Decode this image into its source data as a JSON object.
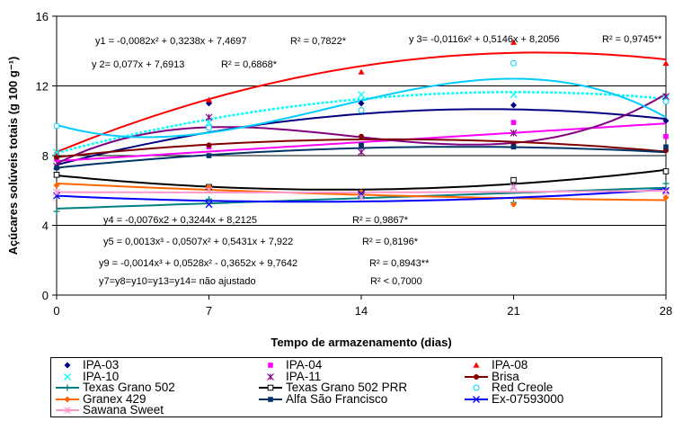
{
  "chart_data": {
    "type": "scatter",
    "xlabel": "Tempo de armazenamento (dias)",
    "ylabel": "Açúcares solúveis totais (g 100 g⁻¹)",
    "xticks": [
      0,
      7,
      14,
      21,
      28
    ],
    "yticks": [
      0,
      4,
      8,
      12,
      16
    ],
    "xlim": [
      0,
      28
    ],
    "ylim": [
      0,
      16
    ],
    "grid": "horizontal",
    "legend_position": "bottom",
    "series": [
      {
        "name": "IPA-03",
        "color": "#000080",
        "marker": "diamond",
        "x": [
          0,
          7,
          14,
          21,
          28
        ],
        "y": [
          7.9,
          11.0,
          11.0,
          10.9,
          10.0
        ],
        "curve": {
          "kind": "poly",
          "coef": [
            7.4697,
            0.3238,
            -0.0082
          ]
        }
      },
      {
        "name": "IPA-04",
        "color": "#ff00ff",
        "marker": "square",
        "x": [
          0,
          7,
          14,
          21,
          28
        ],
        "y": [
          7.8,
          8.5,
          8.6,
          9.9,
          9.1
        ],
        "curve": {
          "kind": "poly",
          "coef": [
            7.6913,
            0.077
          ]
        }
      },
      {
        "name": "IPA-08",
        "color": "#ff0000",
        "marker": "triangle",
        "x": [
          0,
          7,
          14,
          21,
          28
        ],
        "y": [
          8.2,
          11.2,
          12.8,
          14.5,
          13.3
        ],
        "curve": {
          "kind": "poly",
          "coef": [
            8.2056,
            0.5146,
            -0.0116
          ]
        }
      },
      {
        "name": "IPA-10",
        "color": "#00ffff",
        "marker": "x",
        "x": [
          0,
          7,
          14,
          21,
          28
        ],
        "y": [
          8.2,
          9.9,
          11.5,
          11.5,
          11.3
        ],
        "curve": {
          "kind": "dashed-mean"
        }
      },
      {
        "name": "IPA-11",
        "color": "#800080",
        "marker": "star",
        "x": [
          0,
          7,
          14,
          21,
          28
        ],
        "y": [
          7.4,
          10.2,
          8.2,
          9.3,
          11.4
        ],
        "curve": {
          "kind": "fit-points"
        }
      },
      {
        "name": "Brisa",
        "color": "#800000",
        "marker": "circle",
        "x": [
          0,
          7,
          14,
          21,
          28
        ],
        "y": [
          7.9,
          8.6,
          9.1,
          8.6,
          8.3
        ],
        "curve": {
          "kind": "poly-line"
        }
      },
      {
        "name": "Texas Grano 502",
        "color": "#008080",
        "marker": "plus",
        "x": [
          0,
          7,
          14,
          21,
          28
        ],
        "y": [
          4.8,
          5.5,
          5.8,
          5.3,
          6.4
        ],
        "curve": {
          "kind": "poly-line"
        }
      },
      {
        "name": "Texas Grano 502 PRR",
        "color": "#000000",
        "marker": "open-square",
        "x": [
          0,
          7,
          14,
          21,
          28
        ],
        "y": [
          6.9,
          6.2,
          5.9,
          6.6,
          7.1
        ],
        "curve": {
          "kind": "poly-line"
        }
      },
      {
        "name": "Red Creole",
        "color": "#00ccff",
        "marker": "open-circle",
        "x": [
          0,
          7,
          14,
          21,
          28
        ],
        "y": [
          9.7,
          9.6,
          10.6,
          13.3,
          11.1
        ],
        "curve": {
          "kind": "poly",
          "coef": [
            9.7642,
            -0.3652,
            0.0528,
            -0.0014
          ]
        }
      },
      {
        "name": "Granex 429",
        "color": "#ff6600",
        "marker": "diamond",
        "x": [
          0,
          7,
          14,
          21,
          28
        ],
        "y": [
          6.3,
          6.2,
          5.9,
          5.2,
          5.6
        ],
        "curve": {
          "kind": "poly-line"
        }
      },
      {
        "name": "Alfa São Francisco",
        "color": "#003366",
        "marker": "square",
        "x": [
          0,
          7,
          14,
          21,
          28
        ],
        "y": [
          7.3,
          8.0,
          8.6,
          8.5,
          8.5
        ],
        "curve": {
          "kind": "poly",
          "coef": [
            7.3,
            0.13,
            -0.0035
          ]
        }
      },
      {
        "name": "Ex-07593000",
        "color": "#0000ff",
        "marker": "x",
        "x": [
          0,
          7,
          14,
          21,
          28
        ],
        "y": [
          5.7,
          5.2,
          5.8,
          6.2,
          6.0
        ],
        "curve": {
          "kind": "poly",
          "coef": [
            5.7,
            -0.06,
            0.0026
          ]
        }
      },
      {
        "name": "Sawana Sweet",
        "color": "#ff99cc",
        "marker": "star",
        "x": [
          0,
          7,
          14,
          21,
          28
        ],
        "y": [
          5.9,
          6.0,
          5.6,
          6.2,
          5.9
        ],
        "curve": {
          "kind": "poly-line"
        }
      }
    ],
    "annotations": [
      {
        "id": "eq1",
        "equation": "y1 = -0,0082x² + 0,3238x + 7,4697",
        "r2": "R² = 0,7822*"
      },
      {
        "id": "eq2",
        "equation": "y 2= 0,077x + 7,6913",
        "r2": "R² = 0,6868*"
      },
      {
        "id": "eq3",
        "equation": "y 3= -0,0116x² + 0,5146x + 8,2056",
        "r2": "R² = 0,9745**"
      },
      {
        "id": "eq4",
        "equation": "y4 = -0,0076x2 + 0,3244x + 8,2125",
        "r2": "R² = 0,9867*"
      },
      {
        "id": "eq5",
        "equation": "y5 = 0,0013x³ - 0,0507x² + 0,5431x + 7,922",
        "r2": "R² = 0,8196*"
      },
      {
        "id": "eq9",
        "equation": "y9 = -0,0014x³ + 0,0528x² - 0,3652x + 9,7642",
        "r2": "R² = 0,8943**"
      },
      {
        "id": "eq7",
        "equation": "y7=y8=y10=y13=y14= não ajustado",
        "r2": "R² < 0,7000"
      }
    ]
  }
}
